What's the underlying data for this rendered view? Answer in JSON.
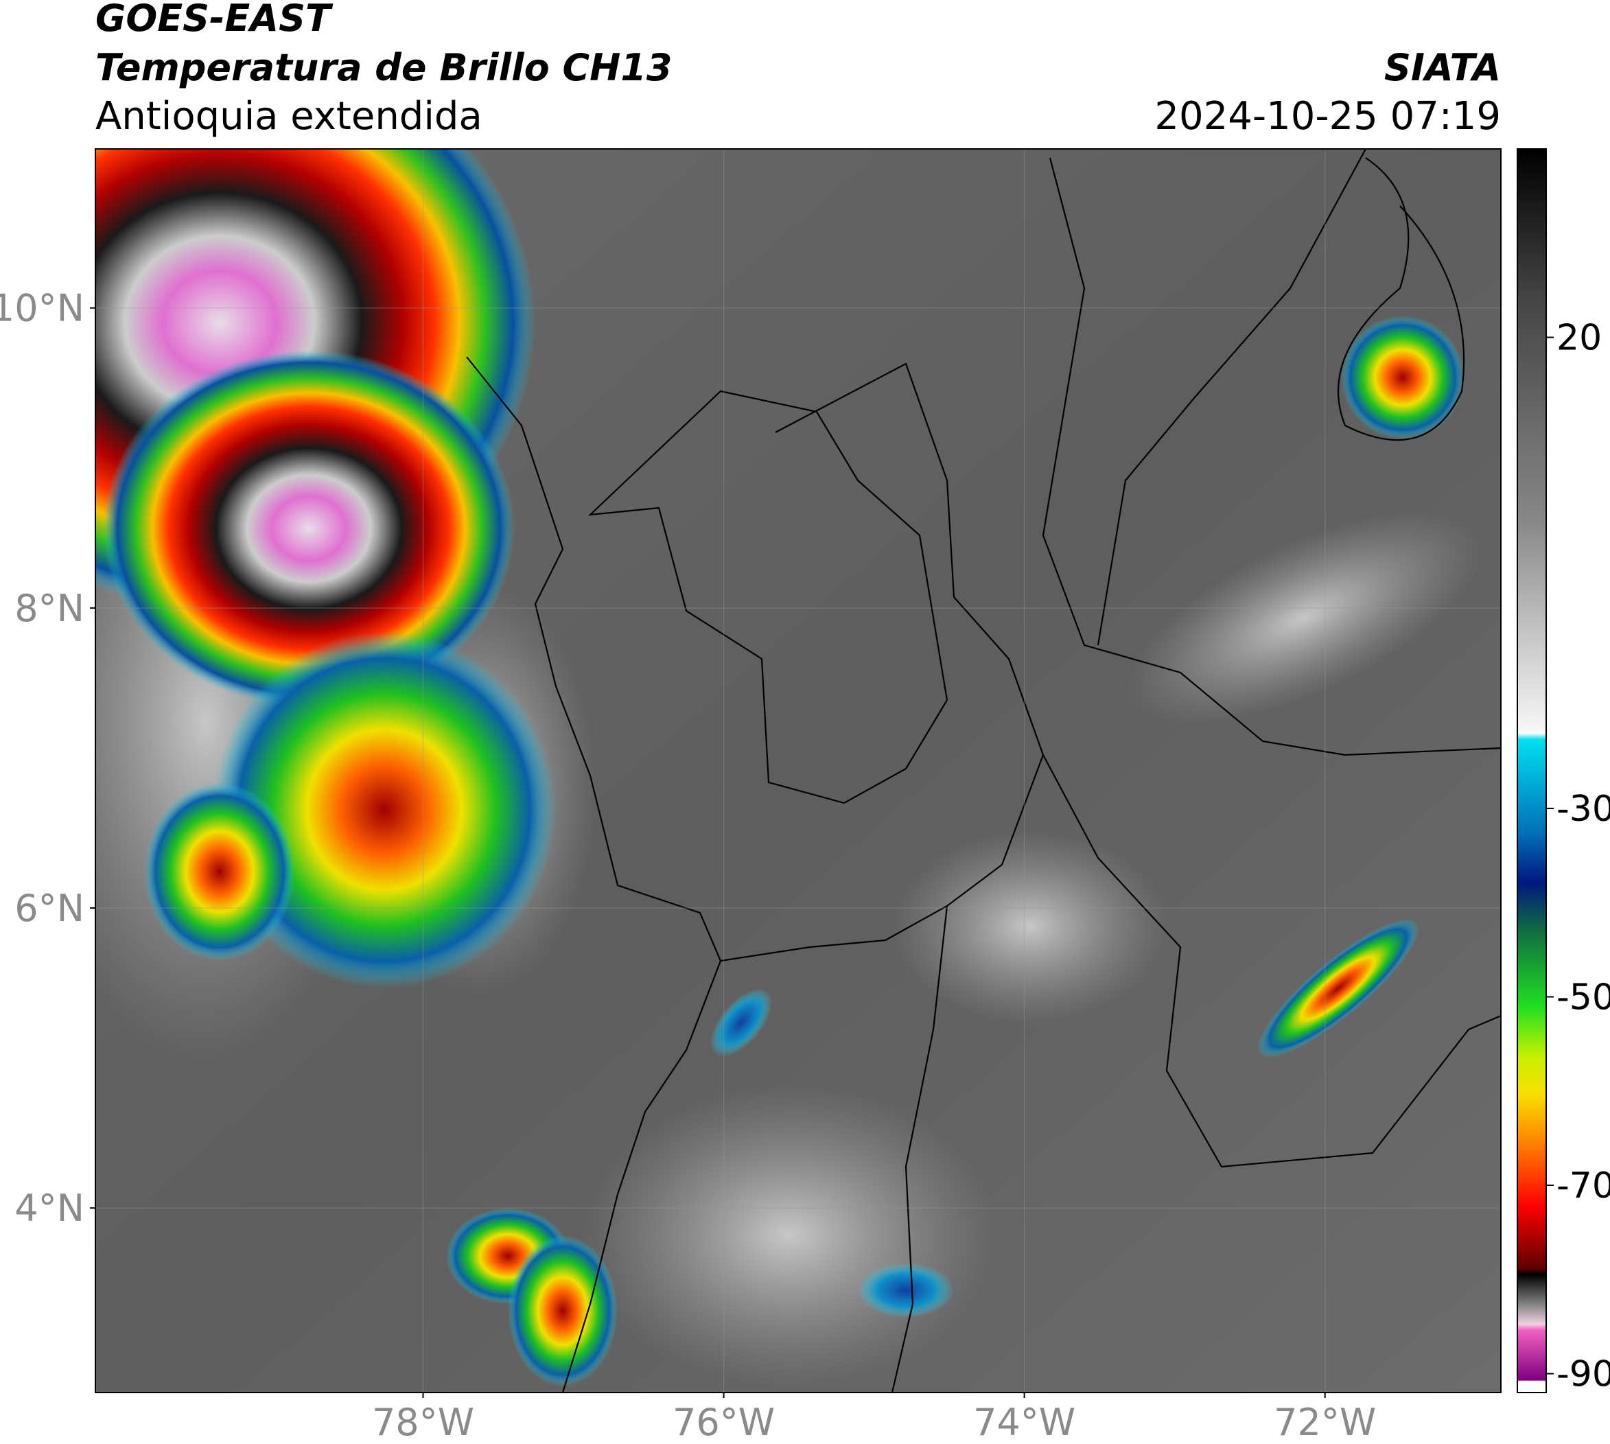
{
  "header": {
    "satellite": "GOES-EAST",
    "product": "Temperatura de Brillo CH13",
    "region": "Antioquia extendida",
    "agency": "SIATA",
    "datetime": "2024-10-25 07:19"
  },
  "map": {
    "xlim": [
      -80.18,
      -70.83
    ],
    "ylim": [
      2.77,
      11.06
    ],
    "xticks": [
      {
        "value": -78,
        "label": "78°W"
      },
      {
        "value": -76,
        "label": "76°W"
      },
      {
        "value": -74,
        "label": "74°W"
      },
      {
        "value": -72,
        "label": "72°W"
      }
    ],
    "yticks": [
      {
        "value": 10,
        "label": "10°N"
      },
      {
        "value": 8,
        "label": "8°N"
      },
      {
        "value": 6,
        "label": "6°N"
      },
      {
        "value": 4,
        "label": "4°N"
      }
    ],
    "grid": true
  },
  "colorbar": {
    "lim": [
      -92,
      40
    ],
    "ticks": [
      20,
      -30,
      -50,
      -70,
      -90
    ]
  }
}
